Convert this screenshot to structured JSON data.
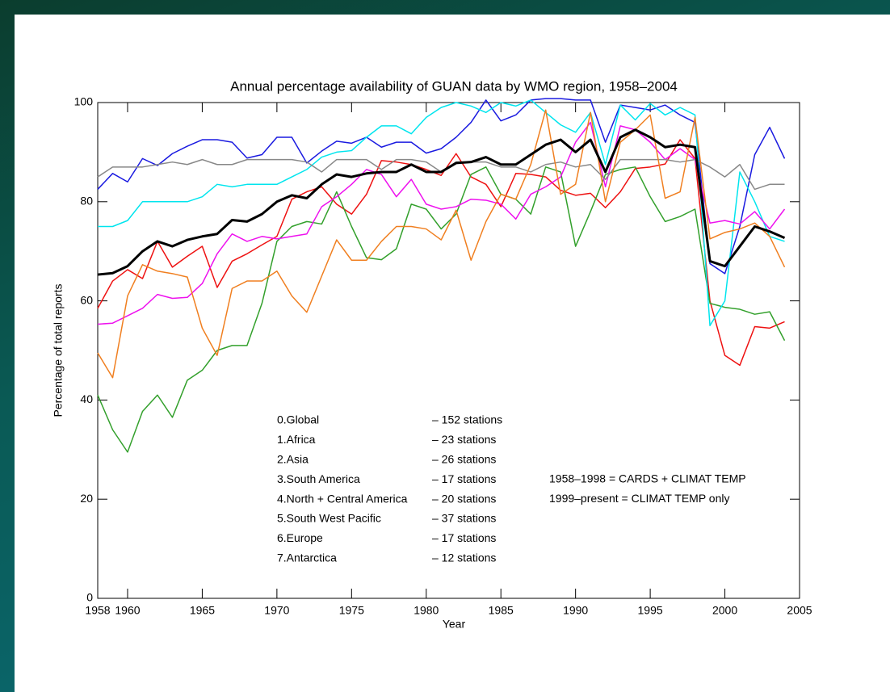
{
  "chart_data": {
    "type": "line",
    "title": "Annual percentage availability of GUAN data by WMO region, 1958–2004",
    "xlabel": "Year",
    "ylabel": "Percentage of total reports",
    "x": [
      1958,
      1959,
      1960,
      1961,
      1962,
      1963,
      1964,
      1965,
      1966,
      1967,
      1968,
      1969,
      1970,
      1971,
      1972,
      1973,
      1974,
      1975,
      1976,
      1977,
      1978,
      1979,
      1980,
      1981,
      1982,
      1983,
      1984,
      1985,
      1986,
      1987,
      1988,
      1989,
      1990,
      1991,
      1992,
      1993,
      1994,
      1995,
      1996,
      1997,
      1998,
      1999,
      2000,
      2001,
      2002,
      2003,
      2004
    ],
    "xlim": [
      1958,
      2005
    ],
    "xticks": [
      1958,
      1960,
      1965,
      1970,
      1975,
      1980,
      1985,
      1990,
      1995,
      2000,
      2005
    ],
    "ylim": [
      0,
      100
    ],
    "yticks": [
      0,
      20,
      40,
      60,
      80,
      100
    ],
    "series": [
      {
        "name": "0.Global",
        "stations": "– 152 stations",
        "color": "#000000",
        "values": [
          65.3,
          65.6,
          67,
          70,
          72,
          71,
          72.3,
          73,
          73.5,
          76.3,
          76,
          77.5,
          80,
          81.3,
          80.7,
          83.5,
          85.5,
          85,
          85.7,
          86,
          86,
          87.5,
          86,
          86,
          87.8,
          88,
          89,
          87.5,
          87.5,
          89.5,
          91.5,
          92.5,
          90,
          92.5,
          86,
          93,
          94.5,
          93,
          91,
          91.5,
          91,
          68,
          67,
          71,
          75,
          74,
          72.7
        ]
      },
      {
        "name": "1.Africa",
        "stations": "– 23 stations",
        "color": "#ee1111",
        "values": [
          58.5,
          64,
          66.3,
          64.5,
          72,
          66.8,
          69,
          71,
          62.7,
          68,
          69.5,
          71.3,
          73,
          80.5,
          82,
          83,
          79.5,
          77.5,
          81.5,
          88.3,
          88,
          87.5,
          86.5,
          85.3,
          89.7,
          85,
          83.5,
          79,
          85.7,
          85.5,
          85,
          82.3,
          81.3,
          81.7,
          78.8,
          82,
          86.7,
          87,
          87.6,
          92.5,
          88.7,
          60,
          49,
          47,
          54.8,
          54.5,
          55.8
        ]
      },
      {
        "name": "2.Asia",
        "stations": "– 26 stations",
        "color": "#1a1ae0",
        "values": [
          82.5,
          85.7,
          84,
          88.7,
          87.3,
          89.7,
          91.2,
          92.5,
          92.5,
          92,
          88.8,
          89.5,
          93,
          93,
          87.8,
          90.2,
          92.2,
          91.8,
          93,
          91,
          92,
          92,
          89.8,
          90.7,
          93,
          96,
          100.5,
          96.3,
          97.5,
          100.5,
          100.8,
          100.8,
          100.5,
          100.5,
          92,
          99.5,
          99,
          98.5,
          99.5,
          97.5,
          96,
          67.5,
          65.5,
          75,
          89.5,
          95,
          88.7
        ]
      },
      {
        "name": "3.South America",
        "stations": "– 17 stations",
        "color": "#33a02c",
        "values": [
          41,
          34,
          29.5,
          37.7,
          41,
          36.5,
          44,
          46,
          50,
          51,
          51,
          59.5,
          72,
          75,
          76,
          75.5,
          82,
          75,
          68.7,
          68.3,
          70.5,
          79.5,
          78.5,
          74.5,
          77.5,
          85.5,
          87,
          81.5,
          80.5,
          77.5,
          87,
          86,
          71,
          78,
          85.5,
          86.5,
          87,
          81,
          76,
          77,
          78.5,
          59.5,
          58.7,
          58.3,
          57.3,
          57.8,
          52
        ]
      },
      {
        "name": "4.North + Central America",
        "stations": "– 20 stations",
        "color": "#00e5ee",
        "values": [
          75,
          75,
          76.2,
          80,
          80,
          80,
          80,
          81,
          83.5,
          83,
          83.5,
          83.5,
          83.5,
          85,
          86.5,
          89,
          90,
          90.3,
          93,
          95.3,
          95.3,
          93.7,
          97,
          99,
          100,
          99.3,
          98,
          100,
          99.3,
          100.5,
          98,
          95.5,
          94,
          98,
          87.5,
          99.5,
          96.5,
          99.8,
          97.5,
          99,
          97.5,
          55,
          60,
          86,
          80,
          73,
          72
        ]
      },
      {
        "name": "5.South West Pacific",
        "stations": "– 37 stations",
        "color": "#ee11ee",
        "values": [
          55.3,
          55.5,
          57,
          58.5,
          61.3,
          60.5,
          60.7,
          63.5,
          69.5,
          73.5,
          72,
          73,
          72.5,
          73,
          73.5,
          79,
          81,
          83.5,
          86.5,
          85.5,
          81,
          84.5,
          79.5,
          78.5,
          79,
          80.5,
          80.3,
          79.5,
          76.5,
          81.5,
          83,
          85,
          92,
          96,
          83,
          95.3,
          94.5,
          92,
          88.5,
          90.7,
          88.5,
          75.7,
          76.2,
          75.5,
          78,
          74.5,
          78.5
        ]
      },
      {
        "name": "6.Europe",
        "stations": "– 17 stations",
        "color": "#888888",
        "values": [
          85,
          87,
          87,
          87,
          87.5,
          88,
          87.5,
          88.5,
          87.5,
          87.5,
          88.5,
          88.5,
          88.5,
          88.5,
          88,
          86,
          88.5,
          88.5,
          88.5,
          86.5,
          88.5,
          88.5,
          88,
          86,
          88,
          88,
          88,
          87,
          87,
          86,
          87.5,
          88,
          87,
          87.5,
          84.5,
          88.5,
          88.5,
          88.5,
          88.5,
          88,
          88.5,
          87,
          85,
          87.5,
          82.5,
          83.5,
          83.5
        ]
      },
      {
        "name": "7.Antarctica",
        "stations": "– 12 stations",
        "color": "#f07f20",
        "values": [
          49.5,
          44.5,
          61,
          67.3,
          66,
          65.5,
          64.8,
          54.5,
          49,
          62.5,
          64,
          64,
          66,
          61,
          57.7,
          65,
          72.3,
          68.2,
          68.2,
          72,
          75,
          75,
          74.5,
          72.3,
          78.3,
          68.2,
          76,
          81.5,
          80.5,
          87.5,
          98.5,
          81.5,
          83.5,
          98,
          80,
          92,
          94.5,
          97.5,
          80.7,
          82,
          97,
          72.5,
          73.8,
          74.5,
          75.7,
          73,
          66.8
        ]
      }
    ],
    "annotations": [
      "1958–1998 = CARDS + CLIMAT TEMP",
      "1999–present = CLIMAT TEMP only"
    ]
  }
}
